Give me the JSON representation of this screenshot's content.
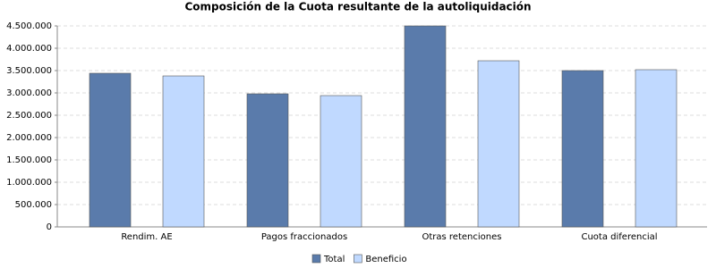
{
  "chart_data": {
    "type": "bar",
    "title": "Composición de la Cuota resultante de la autoliquidación",
    "categories": [
      "Rendim. AE",
      "Pagos fraccionados",
      "Otras retenciones",
      "Cuota diferencial"
    ],
    "series": [
      {
        "name": "Total",
        "color": "#5a7bab",
        "values": [
          3440000,
          2980000,
          4500000,
          3500000
        ]
      },
      {
        "name": "Beneficio",
        "color": "#c0d9ff",
        "values": [
          3380000,
          2940000,
          3720000,
          3520000
        ]
      }
    ],
    "ylim": [
      0,
      4500000
    ],
    "yticks": [
      {
        "value": 0,
        "label": "0"
      },
      {
        "value": 500000,
        "label": "500.000"
      },
      {
        "value": 1000000,
        "label": "1.000.000"
      },
      {
        "value": 1500000,
        "label": "1.500.000"
      },
      {
        "value": 2000000,
        "label": "2.000.000"
      },
      {
        "value": 2500000,
        "label": "2.500.000"
      },
      {
        "value": 3000000,
        "label": "3.000.000"
      },
      {
        "value": 3500000,
        "label": "3.500.000"
      },
      {
        "value": 4000000,
        "label": "4.000.000"
      },
      {
        "value": 4500000,
        "label": "4.500.000"
      }
    ],
    "grid": true,
    "legend": "bottom"
  }
}
